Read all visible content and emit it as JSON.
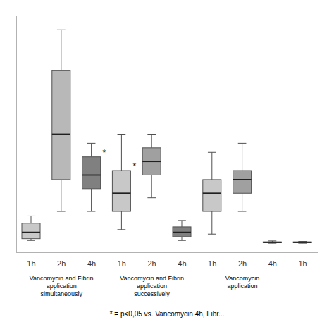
{
  "chart_data": {
    "type": "box",
    "groups": [
      {
        "label": "Vancomycin and Fibrin\napplication\nsimultaneously",
        "categories": [
          "1h",
          "2h",
          "4h"
        ],
        "boxes": [
          {
            "whislo": 0.3,
            "q1": 0.5,
            "med": 1.2,
            "q3": 2.2,
            "whishi": 3.0,
            "color": "#c8c8c8"
          },
          {
            "whislo": 3.5,
            "q1": 7.0,
            "med": 12.0,
            "q3": 19.0,
            "whishi": 23.5,
            "color": "#b8b8b8"
          },
          {
            "whislo": 3.5,
            "q1": 6.0,
            "med": 7.5,
            "q3": 9.5,
            "whishi": 11.0,
            "color": "#808080",
            "annotation": "*"
          }
        ]
      },
      {
        "label": "Vancomycin and Fibrin\napplication\nsuccessively",
        "categories": [
          "1h",
          "2h",
          "4h"
        ],
        "boxes": [
          {
            "whislo": 1.5,
            "q1": 3.5,
            "med": 5.5,
            "q3": 8.0,
            "whishi": 12.0,
            "color": "#c8c8c8",
            "annotation": "*"
          },
          {
            "whislo": 5.0,
            "q1": 7.5,
            "med": 9.0,
            "q3": 10.5,
            "whishi": 12.0,
            "color": "#a0a0a0"
          },
          {
            "whislo": 0.3,
            "q1": 0.7,
            "med": 1.2,
            "q3": 1.8,
            "whishi": 2.5,
            "color": "#808080"
          }
        ]
      },
      {
        "label": "Vancomycin\napplication",
        "categories": [
          "1h",
          "2h",
          "4h"
        ],
        "boxes": [
          {
            "whislo": 1.0,
            "q1": 3.5,
            "med": 5.5,
            "q3": 7.0,
            "whishi": 10.0,
            "color": "#c8c8c8"
          },
          {
            "whislo": 3.5,
            "q1": 5.5,
            "med": 7.0,
            "q3": 8.0,
            "whishi": 11.0,
            "color": "#a0a0a0"
          },
          {
            "whislo": 0.0,
            "q1": 0.05,
            "med": 0.1,
            "q3": 0.15,
            "whishi": 0.25,
            "color": "#808080"
          }
        ]
      },
      {
        "categories": [
          "1h"
        ],
        "boxes": [
          {
            "whislo": 0.0,
            "q1": 0.05,
            "med": 0.1,
            "q3": 0.15,
            "whishi": 0.2,
            "color": "#c8c8c8"
          }
        ]
      }
    ],
    "footer_note": "* = p<0,05 vs. Vancomycin 4h, Fibr...",
    "ylim": [
      -1.0,
      25.0
    ],
    "yticks": [],
    "tick_labels": "x"
  }
}
